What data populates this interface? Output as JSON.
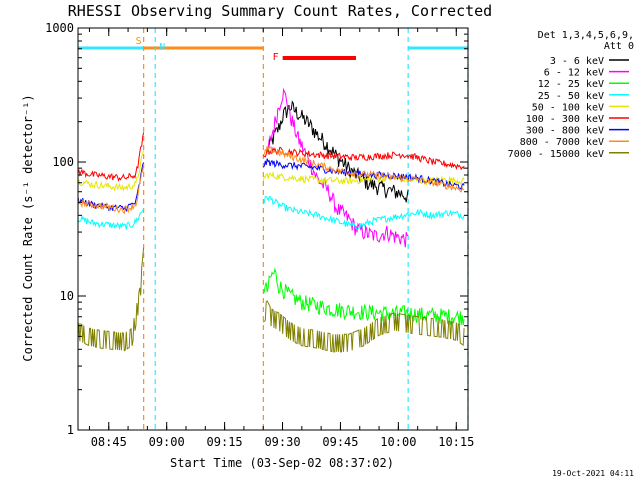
{
  "chart_data": {
    "type": "line",
    "title": "RHESSI Observing Summary Count Rates, Corrected",
    "ylabel": "Corrected Count Rate (s⁻¹ detector⁻¹)",
    "xlabel": "Start Time (03-Sep-02 08:37:02)",
    "yscale": "log",
    "ylim": [
      1,
      1000
    ],
    "xlim_minutes": [
      0,
      101
    ],
    "y_tick_labels": [
      "1",
      "10",
      "100",
      "1000"
    ],
    "x_tick_labels": [
      "08:45",
      "09:00",
      "09:15",
      "09:30",
      "09:45",
      "10:00",
      "10:15"
    ],
    "legend": {
      "header": [
        "Det 1,3,4,5,6,9,",
        "Att 0"
      ],
      "placement": "right"
    },
    "timestamp": "19-Oct-2021 04:11",
    "flags": [
      {
        "label": "S",
        "color": "#ff8c1a",
        "start_min": 17.0,
        "end_min": 48.0
      },
      {
        "label": "N",
        "color": "#33e6ff",
        "start_min": 0,
        "end_min": 17.0
      },
      {
        "label": "N",
        "color": "#33e6ff",
        "start_min": 85.5,
        "end_min": 101
      },
      {
        "label": "F",
        "color": "#ff0000",
        "start_min": 53.0,
        "end_min": 72.0
      }
    ],
    "vlines": [
      {
        "t_min": 17.0,
        "color": "#ff8c1a"
      },
      {
        "t_min": 20.0,
        "color": "#33e6ff"
      },
      {
        "t_min": 48.0,
        "color": "#ff8c1a"
      },
      {
        "t_min": 85.5,
        "color": "#33e6ff"
      },
      {
        "t_min": 101.0,
        "color": "#33e6ff"
      }
    ],
    "series": [
      {
        "name": "3 - 6 keV",
        "color": "#000000",
        "x": [
          49,
          50,
          52,
          53,
          55,
          57,
          60,
          62,
          65,
          67,
          70,
          72,
          75,
          78,
          80,
          82,
          84,
          85.5
        ],
        "y": [
          120,
          140,
          180,
          220,
          260,
          230,
          190,
          160,
          130,
          110,
          90,
          80,
          70,
          65,
          62,
          60,
          58,
          55
        ]
      },
      {
        "name": "6 - 12 keV",
        "color": "#ff00ff",
        "x": [
          49,
          50,
          52,
          53,
          54,
          55,
          57,
          60,
          62,
          65,
          67,
          70,
          72,
          74,
          77,
          80,
          82,
          84,
          85.5
        ],
        "y": [
          120,
          150,
          260,
          330,
          300,
          220,
          150,
          100,
          75,
          60,
          45,
          38,
          32,
          30,
          28,
          30,
          28,
          27,
          26
        ]
      },
      {
        "name": "12 - 25 keV",
        "color": "#00ff00",
        "x": [
          48,
          49,
          50,
          51,
          52,
          55,
          58,
          62,
          66,
          70,
          74,
          78,
          82,
          85,
          88,
          92,
          96,
          100
        ],
        "y": [
          12,
          11,
          14,
          15,
          12,
          10,
          9,
          8.5,
          8,
          7.8,
          7.6,
          7.5,
          7.4,
          7.5,
          7.3,
          7.2,
          7.1,
          7.0
        ]
      },
      {
        "name": "25 - 50 keV",
        "color": "#00ffff",
        "x": [
          0,
          4,
          8,
          12,
          14,
          15,
          17,
          48,
          49,
          52,
          55,
          58,
          62,
          66,
          70,
          72,
          74,
          76,
          80,
          84,
          88,
          92,
          96,
          100
        ],
        "y": [
          38,
          35,
          34,
          33,
          34,
          36,
          45,
          50,
          55,
          48,
          44,
          42,
          40,
          37,
          34,
          33,
          34,
          36,
          38,
          40,
          42,
          40,
          42,
          40
        ]
      },
      {
        "name": "50 - 100 keV",
        "color": "#e6e600",
        "x": [
          0,
          4,
          8,
          12,
          15,
          17,
          48,
          49,
          52,
          56,
          60,
          65,
          70,
          75,
          80,
          85,
          90,
          95,
          100
        ],
        "y": [
          72,
          68,
          66,
          64,
          68,
          120,
          75,
          80,
          78,
          76,
          74,
          73,
          72,
          74,
          76,
          74,
          72,
          74,
          72
        ]
      },
      {
        "name": "100 - 300 keV",
        "color": "#ff0000",
        "x": [
          0,
          4,
          8,
          12,
          15,
          17,
          48,
          49,
          52,
          56,
          60,
          64,
          68,
          72,
          76,
          80,
          84,
          88,
          92,
          96,
          100
        ],
        "y": [
          85,
          80,
          78,
          76,
          80,
          160,
          110,
          120,
          122,
          118,
          115,
          112,
          110,
          108,
          110,
          112,
          114,
          108,
          100,
          96,
          92
        ]
      },
      {
        "name": "300 - 800 keV",
        "color": "#0000ff",
        "x": [
          0,
          4,
          8,
          12,
          15,
          17,
          48,
          49,
          52,
          56,
          60,
          64,
          68,
          72,
          76,
          80,
          84,
          88,
          92,
          96,
          100
        ],
        "y": [
          52,
          48,
          46,
          45,
          50,
          100,
          95,
          100,
          96,
          94,
          92,
          88,
          84,
          82,
          80,
          80,
          78,
          76,
          72,
          68,
          65
        ]
      },
      {
        "name": "800 - 7000 keV",
        "color": "#ff8c1a",
        "x": [
          0,
          4,
          8,
          12,
          15,
          17,
          48,
          49,
          52,
          56,
          60,
          64,
          68,
          72,
          76,
          80,
          84,
          88,
          92,
          96,
          100
        ],
        "y": [
          50,
          48,
          46,
          44,
          48,
          95,
          110,
          125,
          118,
          108,
          100,
          92,
          86,
          82,
          80,
          78,
          76,
          74,
          70,
          66,
          62
        ]
      },
      {
        "name": "7000 - 15000 keV",
        "color": "#808000",
        "x": [
          0,
          3,
          6,
          9,
          12,
          14,
          16,
          17,
          48,
          49,
          50,
          52,
          55,
          58,
          62,
          66,
          70,
          74,
          78,
          82,
          86,
          90,
          94,
          98,
          100
        ],
        "y": [
          5.5,
          5,
          4.8,
          4.7,
          4.6,
          5,
          10,
          20,
          7.5,
          8,
          7,
          6.5,
          5.5,
          5,
          4.8,
          4.5,
          4.5,
          5,
          6,
          6.5,
          6.2,
          6,
          5.8,
          5.5,
          5
        ]
      }
    ]
  }
}
